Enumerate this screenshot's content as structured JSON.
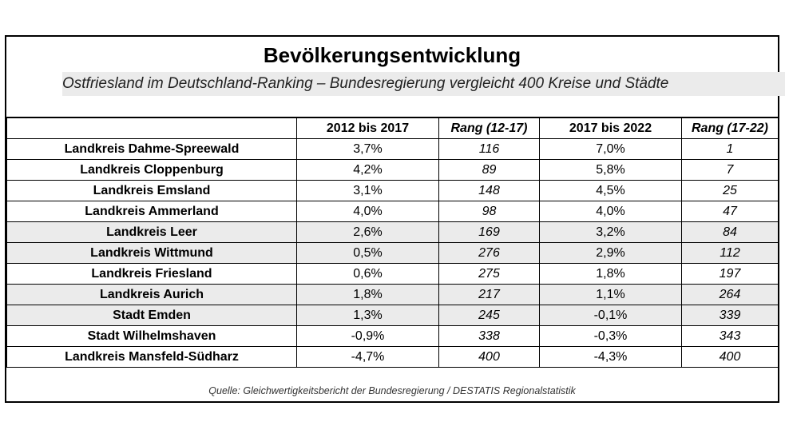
{
  "title": "Bevölkerungsentwicklung",
  "subtitle": "Ostfriesland im Deutschland-Ranking – Bundesregierung vergleicht 400 Kreise und Städte",
  "columns": [
    "",
    "2012 bis 2017",
    "Rang (12-17)",
    "2017 bis 2022",
    "Rang (17-22)"
  ],
  "rows": [
    {
      "name": "Landkreis Dahme-Spreewald",
      "c1217": "3,7%",
      "r1217": "116",
      "c1722": "7,0%",
      "r1722": "1",
      "shaded": false
    },
    {
      "name": "Landkreis Cloppenburg",
      "c1217": "4,2%",
      "r1217": "89",
      "c1722": "5,8%",
      "r1722": "7",
      "shaded": false
    },
    {
      "name": "Landkreis Emsland",
      "c1217": "3,1%",
      "r1217": "148",
      "c1722": "4,5%",
      "r1722": "25",
      "shaded": false
    },
    {
      "name": "Landkreis Ammerland",
      "c1217": "4,0%",
      "r1217": "98",
      "c1722": "4,0%",
      "r1722": "47",
      "shaded": false
    },
    {
      "name": "Landkreis Leer",
      "c1217": "2,6%",
      "r1217": "169",
      "c1722": "3,2%",
      "r1722": "84",
      "shaded": true
    },
    {
      "name": "Landkreis Wittmund",
      "c1217": "0,5%",
      "r1217": "276",
      "c1722": "2,9%",
      "r1722": "112",
      "shaded": true
    },
    {
      "name": "Landkreis Friesland",
      "c1217": "0,6%",
      "r1217": "275",
      "c1722": "1,8%",
      "r1722": "197",
      "shaded": false
    },
    {
      "name": "Landkreis Aurich",
      "c1217": "1,8%",
      "r1217": "217",
      "c1722": "1,1%",
      "r1722": "264",
      "shaded": true
    },
    {
      "name": "Stadt Emden",
      "c1217": "1,3%",
      "r1217": "245",
      "c1722": "-0,1%",
      "r1722": "339",
      "shaded": true
    },
    {
      "name": "Stadt Wilhelmshaven",
      "c1217": "-0,9%",
      "r1217": "338",
      "c1722": "-0,3%",
      "r1722": "343",
      "shaded": false
    },
    {
      "name": "Landkreis Mansfeld-Südharz",
      "c1217": "-4,7%",
      "r1217": "400",
      "c1722": "-4,3%",
      "r1722": "400",
      "shaded": false
    }
  ],
  "source": "Quelle: Gleichwertigkeitsbericht der Bundesregierung / DESTATIS Regionalstatistik",
  "colors": {
    "shade": "#ebebeb",
    "border": "#000000"
  }
}
